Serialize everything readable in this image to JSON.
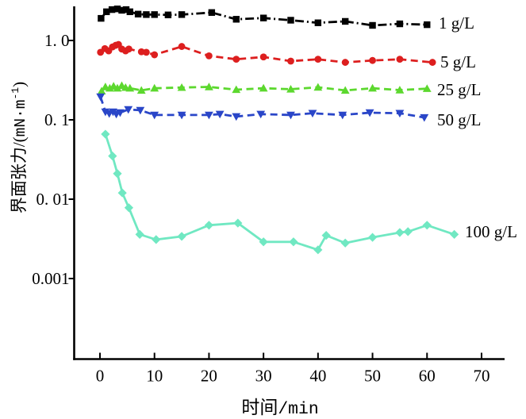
{
  "chart_data": {
    "type": "line",
    "title": "",
    "xlabel": {
      "cjk": "时间",
      "unit": "/min"
    },
    "ylabel": {
      "cjk": "界面张力",
      "open": "/(",
      "unit": "mN·m",
      "sup": "-1",
      "close": ")"
    },
    "x_axis": {
      "range": [
        -4.8,
        74.2
      ],
      "ticks": [
        0,
        10,
        20,
        30,
        40,
        50,
        60,
        70
      ],
      "tick_labels": [
        "0",
        "10",
        "20",
        "30",
        "40",
        "50",
        "60",
        "70"
      ]
    },
    "y_axis": {
      "scale": "log",
      "range": [
        9e-05,
        2.6
      ],
      "ticks": [
        1.0,
        0.1,
        0.01,
        0.001
      ],
      "tick_labels": [
        "1. 0",
        "0. 1",
        "0. 01",
        "0.001"
      ]
    },
    "grid": false,
    "legend_position": "right-of-last-point",
    "series": [
      {
        "name": "1 g/L",
        "label": "1 g/L",
        "color": "#000000",
        "marker": "square",
        "dashed": true,
        "points": [
          [
            0.2,
            1.9
          ],
          [
            1.2,
            2.3
          ],
          [
            2.2,
            2.45
          ],
          [
            3.2,
            2.5
          ],
          [
            4.0,
            2.4
          ],
          [
            4.8,
            2.45
          ],
          [
            5.5,
            2.3
          ],
          [
            7.0,
            2.15
          ],
          [
            8.5,
            2.12
          ],
          [
            10,
            2.12
          ],
          [
            12.5,
            2.1
          ],
          [
            15,
            2.12
          ],
          [
            20.5,
            2.25
          ],
          [
            25,
            1.85
          ],
          [
            30,
            1.92
          ],
          [
            35,
            1.8
          ],
          [
            40,
            1.67
          ],
          [
            45,
            1.74
          ],
          [
            50,
            1.55
          ],
          [
            55,
            1.62
          ],
          [
            60,
            1.58
          ]
        ]
      },
      {
        "name": "5 g/L",
        "label": "5 g/L",
        "color": "#dd1f1f",
        "marker": "circle",
        "dashed": true,
        "points": [
          [
            0.1,
            0.71
          ],
          [
            0.9,
            0.79
          ],
          [
            1.6,
            0.74
          ],
          [
            2.3,
            0.83
          ],
          [
            2.9,
            0.87
          ],
          [
            3.4,
            0.89
          ],
          [
            4.0,
            0.78
          ],
          [
            4.7,
            0.74
          ],
          [
            5.3,
            0.78
          ],
          [
            7.6,
            0.72
          ],
          [
            8.5,
            0.71
          ],
          [
            10,
            0.66
          ],
          [
            15,
            0.84
          ],
          [
            20,
            0.64
          ],
          [
            25,
            0.58
          ],
          [
            30,
            0.62
          ],
          [
            35,
            0.55
          ],
          [
            40,
            0.58
          ],
          [
            45,
            0.53
          ],
          [
            50,
            0.56
          ],
          [
            55,
            0.58
          ],
          [
            61,
            0.53
          ]
        ]
      },
      {
        "name": "25 g/L",
        "label": "25 g/L",
        "color": "#5cd82e",
        "marker": "triangle-up",
        "dashed": true,
        "points": [
          [
            0.3,
            0.23
          ],
          [
            1.0,
            0.26
          ],
          [
            1.8,
            0.25
          ],
          [
            2.5,
            0.265
          ],
          [
            3.2,
            0.25
          ],
          [
            4.0,
            0.27
          ],
          [
            4.7,
            0.255
          ],
          [
            5.5,
            0.25
          ],
          [
            7.6,
            0.235
          ],
          [
            10,
            0.25
          ],
          [
            15,
            0.255
          ],
          [
            20,
            0.26
          ],
          [
            25,
            0.24
          ],
          [
            30,
            0.25
          ],
          [
            35,
            0.243
          ],
          [
            40,
            0.257
          ],
          [
            45,
            0.235
          ],
          [
            50,
            0.25
          ],
          [
            55,
            0.237
          ],
          [
            60,
            0.247
          ]
        ]
      },
      {
        "name": "50 g/L",
        "label": "50 g/L",
        "color": "#2a46c8",
        "marker": "triangle-down",
        "dashed": true,
        "points": [
          [
            0.1,
            0.195
          ],
          [
            1.0,
            0.126
          ],
          [
            1.7,
            0.12
          ],
          [
            2.4,
            0.126
          ],
          [
            3.0,
            0.118
          ],
          [
            3.7,
            0.123
          ],
          [
            5.2,
            0.135
          ],
          [
            7.4,
            0.132
          ],
          [
            10,
            0.115
          ],
          [
            15,
            0.115
          ],
          [
            20,
            0.115
          ],
          [
            22,
            0.118
          ],
          [
            25,
            0.11
          ],
          [
            29.5,
            0.118
          ],
          [
            35,
            0.115
          ],
          [
            39,
            0.121
          ],
          [
            44.5,
            0.115
          ],
          [
            49.5,
            0.123
          ],
          [
            55,
            0.121
          ],
          [
            59.5,
            0.107
          ]
        ]
      },
      {
        "name": "100 g/L",
        "label": "100 g/L",
        "color": "#70e8c2",
        "marker": "diamond",
        "dashed": false,
        "points": [
          [
            1.0,
            0.066
          ],
          [
            2.3,
            0.035
          ],
          [
            3.2,
            0.021
          ],
          [
            4.1,
            0.012
          ],
          [
            5.3,
            0.0078
          ],
          [
            7.3,
            0.0036
          ],
          [
            10.3,
            0.0031
          ],
          [
            15,
            0.0034
          ],
          [
            20,
            0.0047
          ],
          [
            25.3,
            0.005
          ],
          [
            30,
            0.0029
          ],
          [
            35.5,
            0.0029
          ],
          [
            40,
            0.0023
          ],
          [
            41.5,
            0.0035
          ],
          [
            45,
            0.0028
          ],
          [
            50,
            0.0033
          ],
          [
            55,
            0.0038
          ],
          [
            56.5,
            0.0039
          ],
          [
            60,
            0.0047
          ],
          [
            65,
            0.0036
          ]
        ]
      }
    ]
  }
}
